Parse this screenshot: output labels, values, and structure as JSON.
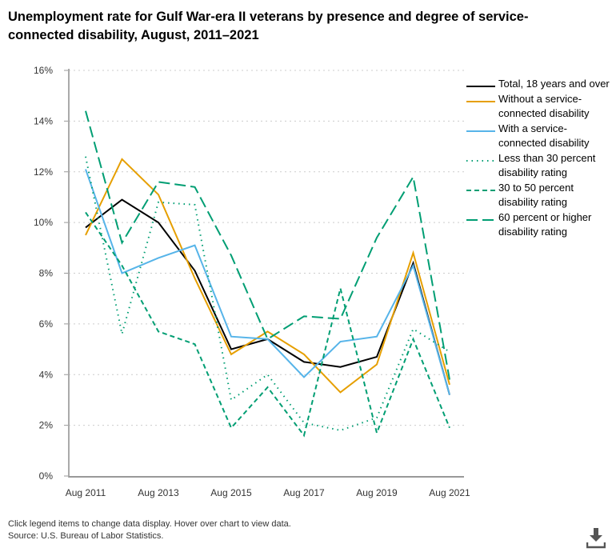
{
  "chart_data": {
    "type": "line",
    "title": "Unemployment rate for Gulf War-era II veterans by presence and degree of service-connected disability, August, 2011–2021",
    "x": [
      2011,
      2012,
      2013,
      2014,
      2015,
      2016,
      2017,
      2018,
      2019,
      2020,
      2021
    ],
    "xticks": [
      "Aug 2011",
      "Aug 2013",
      "Aug 2015",
      "Aug 2017",
      "Aug 2019",
      "Aug 2021"
    ],
    "xtick_years": [
      2011,
      2013,
      2015,
      2017,
      2019,
      2021
    ],
    "yticks": [
      "0%",
      "2%",
      "4%",
      "6%",
      "8%",
      "10%",
      "12%",
      "14%",
      "16%"
    ],
    "ylim": [
      0,
      16
    ],
    "xlabel": "",
    "ylabel": "",
    "grid": true,
    "legend_position": "right",
    "series": [
      {
        "name": "Total, 18 years and over",
        "color": "#000000",
        "dash": "",
        "values": [
          9.8,
          10.9,
          10.0,
          8.1,
          5.0,
          5.4,
          4.5,
          4.3,
          4.7,
          8.4,
          3.2
        ]
      },
      {
        "name": "Without a service-connected disability",
        "color": "#E69F00",
        "dash": "",
        "values": [
          9.5,
          12.5,
          11.1,
          7.8,
          4.8,
          5.7,
          4.8,
          3.3,
          4.4,
          8.8,
          3.6
        ]
      },
      {
        "name": "With a service-connected disability",
        "color": "#56B4E9",
        "dash": "",
        "values": [
          12.1,
          8.0,
          8.6,
          9.1,
          5.5,
          5.4,
          3.9,
          5.3,
          5.5,
          8.3,
          3.2
        ]
      },
      {
        "name": "Less than 30 percent disability rating",
        "color": "#009E73",
        "dash": "1.5,5",
        "values": [
          12.6,
          5.6,
          10.8,
          10.7,
          3.0,
          4.0,
          2.1,
          1.8,
          2.3,
          5.8,
          4.9
        ]
      },
      {
        "name": "30 to 50 percent disability rating",
        "color": "#009E73",
        "dash": "6,4",
        "values": [
          10.4,
          8.3,
          5.7,
          5.2,
          1.9,
          3.5,
          1.6,
          7.4,
          1.7,
          5.4,
          1.9
        ]
      },
      {
        "name": "60 percent or higher disability rating",
        "color": "#009E73",
        "dash": "14,6",
        "values": [
          14.4,
          9.2,
          11.6,
          11.4,
          8.7,
          5.4,
          6.3,
          6.2,
          9.4,
          11.8,
          3.8
        ]
      }
    ]
  },
  "footer": {
    "note": "Click legend items to change data display. Hover over chart to view data.",
    "source": "Source: U.S. Bureau of Labor Statistics."
  },
  "icons": {
    "download": "download-icon"
  }
}
